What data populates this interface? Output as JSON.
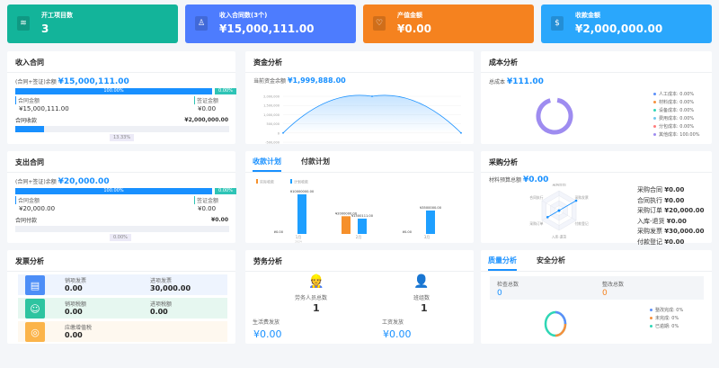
{
  "cards": [
    {
      "title": "开工项目数",
      "value": "3",
      "icon": "layers-icon",
      "color": "#13b49a"
    },
    {
      "title": "收入合同数(3个)",
      "value": "¥15,000,111.00",
      "icon": "stamp-icon",
      "color": "#4d7cfe"
    },
    {
      "title": "产值金额",
      "value": "¥0.00",
      "icon": "heart-shield-icon",
      "color": "#f5821f"
    },
    {
      "title": "收款金额",
      "value": "¥2,000,000.00",
      "icon": "money-bag-icon",
      "color": "#2aa7fc"
    }
  ],
  "income": {
    "title": "收入合同",
    "balance_label": "(合同+签证)余额",
    "balance": "¥15,000,111.00",
    "contract_pct": "100.00%",
    "visa_pct": "0.00%",
    "contract_label": "合同金额",
    "contract_value": "¥15,000,111.00",
    "visa_label": "签证金额",
    "visa_value": "¥0.00",
    "collect_label": "合同收款",
    "collect_value": "¥2,000,000.00",
    "collect_pct": "13.33%",
    "collect_fraction": 0.1333
  },
  "expense": {
    "title": "支出合同",
    "balance_label": "(合同+签证)余额",
    "balance": "¥20,000.00",
    "contract_pct": "100.00%",
    "visa_pct": "0.00%",
    "contract_label": "合同金额",
    "contract_value": "¥20,000.00",
    "visa_label": "签证金额",
    "visa_value": "¥0.00",
    "collect_label": "合同付款",
    "collect_value": "¥0.00",
    "collect_pct": "0.00%",
    "collect_fraction": 0
  },
  "funds": {
    "title": "资金分析",
    "balance_label": "当前资金余额",
    "balance": "¥1,999,888.00"
  },
  "plan": {
    "tabs": [
      "收款计划",
      "付款计划"
    ],
    "active_tab": 0
  },
  "cost": {
    "title": "成本分析",
    "total_label": "总成本",
    "total": "¥111.00",
    "legend": [
      {
        "label": "人工成本: 0.00%",
        "color": "#5b8ff9"
      },
      {
        "label": "材料成本: 0.00%",
        "color": "#f6903d"
      },
      {
        "label": "设备成本: 0.00%",
        "color": "#2fd6b5"
      },
      {
        "label": "费用成本: 0.00%",
        "color": "#6dc8ec"
      },
      {
        "label": "分包成本: 0.00%",
        "color": "#ff7c7c"
      },
      {
        "label": "其他成本: 100.00%",
        "color": "#9e8cf0"
      }
    ]
  },
  "purchase": {
    "title": "采购分析",
    "budget_label": "材料预算总额",
    "budget": "¥0.00",
    "items": [
      {
        "label": "采购合同",
        "value": "¥0.00"
      },
      {
        "label": "合同执行",
        "value": "¥0.00"
      },
      {
        "label": "采购订单",
        "value": "¥20,000.00"
      },
      {
        "label": "入库-退货",
        "value": "¥0.00"
      },
      {
        "label": "采购发票",
        "value": "¥30,000.00"
      },
      {
        "label": "付款登记",
        "value": "¥0.00"
      }
    ]
  },
  "invoice": {
    "title": "发票分析",
    "rows": [
      {
        "icon": "invoice-printer-icon",
        "color": "#4d8ef7",
        "bg": "#eef4fe",
        "a_label": "销项发票",
        "a_value": "0.00",
        "b_label": "进项发票",
        "b_value": "30,000.00"
      },
      {
        "icon": "tax-hand-icon",
        "color": "#2ec4a0",
        "bg": "#e6f7f0",
        "a_label": "销项税额",
        "a_value": "0.00",
        "b_label": "进项税额",
        "b_value": "0.00"
      },
      {
        "icon": "vat-coin-icon",
        "color": "#fbb44a",
        "bg": "#fef8ef",
        "a_label": "应缴增值税",
        "a_value": "0.00"
      }
    ]
  },
  "labor": {
    "title": "劳务分析",
    "workers_label": "劳务人员总数",
    "workers": "1",
    "teams_label": "班组数",
    "teams": "1",
    "living_label": "生活费发放",
    "living": "¥0.00",
    "wage_label": "工资发放",
    "wage": "¥0.00"
  },
  "quality": {
    "tabs": [
      "质量分析",
      "安全分析"
    ],
    "active_tab": 0,
    "check_label": "检查总数",
    "check": "0",
    "fix_label": "整改总数",
    "fix": "0",
    "legend": [
      {
        "label": "整改完成: 0%",
        "color": "#5b8ff9"
      },
      {
        "label": "未完成: 0%",
        "color": "#f6903d"
      },
      {
        "label": "已逾期: 0%",
        "color": "#2fd6b5"
      }
    ]
  },
  "chart_data": [
    {
      "type": "area",
      "x": [
        "2024-01",
        "2024-02",
        "2024-03"
      ],
      "values": [
        0,
        2000000,
        0
      ],
      "yticks": [
        "2,000,000",
        "1,500,000",
        "1,000,000",
        "500,000",
        "0",
        "-500,000"
      ],
      "ylim": [
        -500000,
        2000000
      ],
      "color": "#1890ff"
    },
    {
      "type": "bar",
      "categories": [
        "1月",
        "2月",
        "3月"
      ],
      "sub_label": "2024",
      "series": [
        {
          "name": "实际收款",
          "color": "#f6902b",
          "values": [
            0,
            2000000,
            0
          ],
          "labels": [
            "¥0.00",
            "¥2000000.00",
            "¥0.00"
          ]
        },
        {
          "name": "计划收款",
          "color": "#1e9fff",
          "values": [
            10000000,
            1500111,
            3500000
          ],
          "labels": [
            "¥10000000.00",
            "¥1500111.00",
            "¥3500000.00"
          ]
        }
      ]
    },
    {
      "type": "pie",
      "categories": [
        "人工成本",
        "材料成本",
        "设备成本",
        "费用成本",
        "分包成本",
        "其他成本"
      ],
      "values": [
        0,
        0,
        0,
        0,
        0,
        100
      ]
    },
    {
      "type": "radar",
      "categories": [
        "采购合同",
        "采购发票",
        "付款登记",
        "入库-退货",
        "采购订单",
        "合同执行"
      ],
      "values": [
        0,
        30000,
        0,
        0,
        20000,
        0
      ]
    }
  ]
}
